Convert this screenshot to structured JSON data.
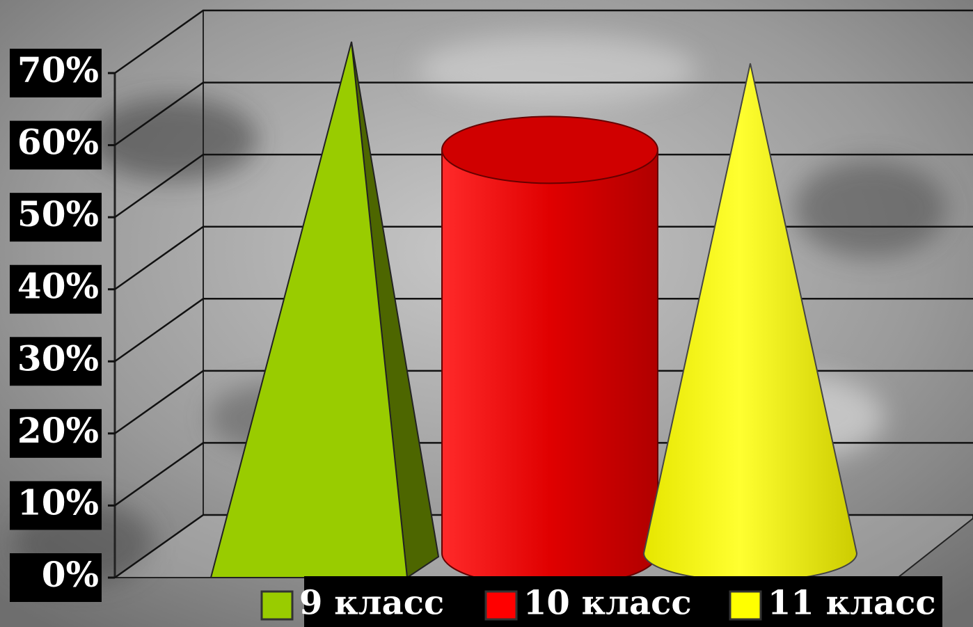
{
  "chart_data": {
    "type": "bar3d",
    "categories": [
      null
    ],
    "series": [
      {
        "name": "9 класс",
        "color": "#99cc00",
        "shape": "pyramid",
        "values": [
          70
        ]
      },
      {
        "name": "10 класс",
        "color": "#ff0000",
        "shape": "cylinder",
        "values": [
          55
        ]
      },
      {
        "name": "11 класс",
        "color": "#ffff00",
        "shape": "cone",
        "values": [
          67
        ]
      }
    ],
    "ylim": [
      0,
      70
    ],
    "yticks": [
      {
        "value": 0,
        "label": "0%"
      },
      {
        "value": 10,
        "label": "10%"
      },
      {
        "value": 20,
        "label": "20%"
      },
      {
        "value": 30,
        "label": "30%"
      },
      {
        "value": 40,
        "label": "40%"
      },
      {
        "value": 50,
        "label": "50%"
      },
      {
        "value": 60,
        "label": "60%"
      },
      {
        "value": 70,
        "label": "70%"
      }
    ],
    "grid": true,
    "legend": "bottom"
  }
}
